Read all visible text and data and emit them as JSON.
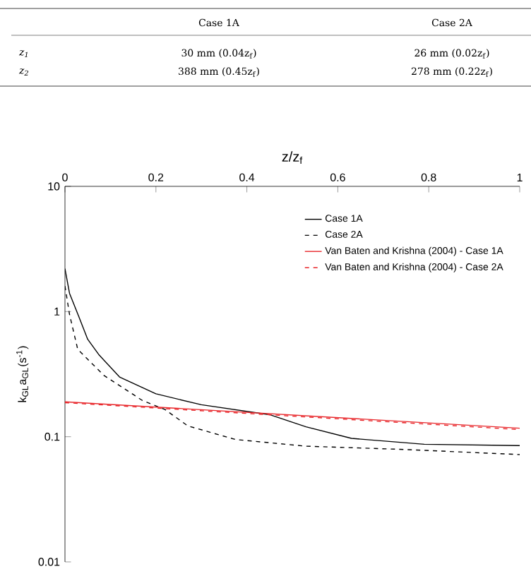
{
  "chart_data": {
    "type": "line",
    "xlabel": "z/z$_{f}$",
    "ylabel": "k$_{GL}$a$_{GL}$(s$^{-1}$)",
    "log": "y",
    "xlim": [
      0,
      1
    ],
    "ylim": [
      0.01,
      10
    ],
    "xticks": [
      0,
      0.2,
      0.4,
      0.6,
      0.8,
      1
    ],
    "yticks": [
      0.01,
      0.1,
      1,
      10
    ],
    "grid": false,
    "legend": "top right",
    "marker": "none",
    "annotations": [
      "Case 1A",
      "Case 2A",
      "z$_{1}$",
      "30 mm (0.04z$_{f}$)",
      "26 mm (0.02z$_{f}$)",
      "z$_{2}$",
      "388 mm (0.45z$_{f}$)",
      "278 mm (0.22z$_{f}$)"
    ],
    "series": [
      {
        "name": "Case 1A",
        "color": "#000000",
        "line_style": "solid",
        "x": [
          0,
          0.01,
          0.03,
          0.05,
          0.075,
          0.12,
          0.2,
          0.3,
          0.45,
          0.53,
          0.63,
          0.79,
          1
        ],
        "values": [
          2.2,
          1.4,
          0.92,
          0.6,
          0.45,
          0.3,
          0.22,
          0.18,
          0.15,
          0.12,
          0.097,
          0.087,
          0.085
        ]
      },
      {
        "name": "Case 2A",
        "color": "#000000",
        "line_style": "dashed",
        "x": [
          0,
          0.01,
          0.028,
          0.085,
          0.17,
          0.22,
          0.27,
          0.375,
          0.53,
          0.75,
          1
        ],
        "values": [
          1.6,
          0.95,
          0.5,
          0.31,
          0.195,
          0.165,
          0.122,
          0.095,
          0.084,
          0.079,
          0.072
        ]
      },
      {
        "name": "Van Baten and Krishna (2004) - Case 1A",
        "color": "#e8262a",
        "line_style": "solid",
        "x": [
          0,
          1
        ],
        "values": [
          0.19,
          0.117
        ]
      },
      {
        "name": "Van Baten and Krishna (2004) - Case 2A",
        "color": "#e8262a",
        "line_style": "dashed",
        "x": [
          0,
          1
        ],
        "values": [
          0.187,
          0.114
        ]
      }
    ]
  }
}
